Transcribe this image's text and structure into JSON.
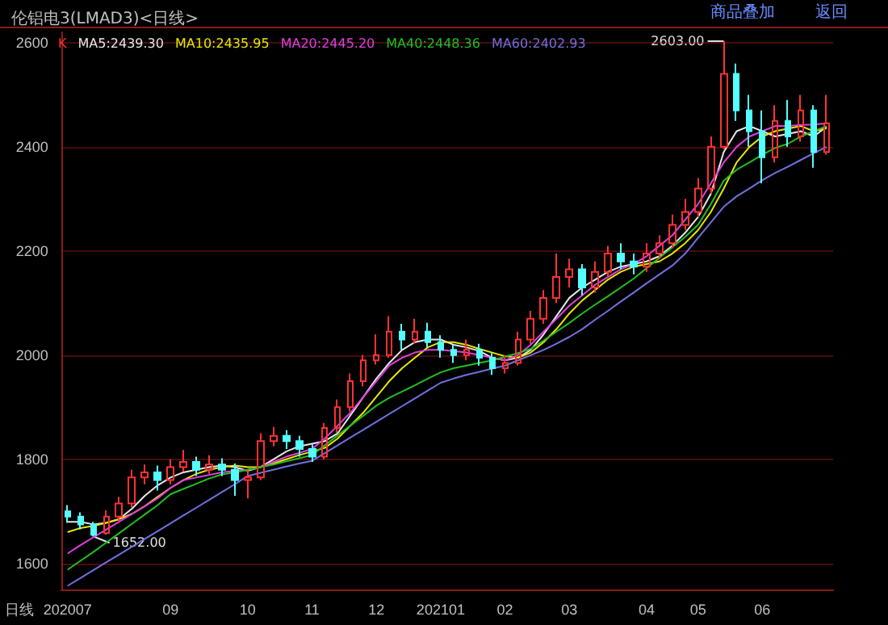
{
  "chart_data": {
    "type": "candlestick",
    "title": "伦铝电3(LMAD3)<日线>",
    "xlabel": "日线",
    "categories": [
      "202007",
      null,
      null,
      null,
      null,
      null,
      null,
      null,
      "09",
      null,
      null,
      null,
      null,
      null,
      "10",
      null,
      null,
      null,
      null,
      "11",
      null,
      null,
      null,
      null,
      "12",
      null,
      null,
      null,
      null,
      "202101",
      null,
      null,
      null,
      null,
      "02",
      null,
      null,
      null,
      null,
      "03",
      null,
      null,
      null,
      null,
      null,
      "04",
      null,
      null,
      null,
      "05",
      null,
      null,
      null,
      null,
      "06",
      null,
      null,
      null,
      null,
      null
    ],
    "series": [
      {
        "name": "K",
        "type": "candlestick",
        "value_labels": [
          null,
          null,
          "1652.00",
          null,
          null,
          null,
          null,
          null,
          null,
          null,
          null,
          null,
          null,
          null,
          null,
          null,
          null,
          null,
          null,
          null,
          null,
          null,
          null,
          null,
          null,
          null,
          null,
          null,
          null,
          null,
          null,
          null,
          null,
          null,
          null,
          null,
          null,
          null,
          null,
          null,
          null,
          null,
          null,
          null,
          null,
          null,
          null,
          null,
          null,
          null,
          null,
          "2603.00",
          null,
          null,
          null,
          null,
          null,
          null,
          null,
          null
        ],
        "colors": [
          "#54ffff",
          "#54ffff",
          "#54ffff",
          "#ff3232",
          "#ff3232",
          "#ff3232",
          "#ff3232",
          "#54ffff",
          "#ff3232",
          "#ff3232",
          "#54ffff",
          "#ff3232",
          "#54ffff",
          "#54ffff",
          "#ff3232",
          "#ff3232",
          "#ff3232",
          "#54ffff",
          "#54ffff",
          "#54ffff",
          "#ff3232",
          "#ff3232",
          "#ff3232",
          "#ff3232",
          "#ff3232",
          "#ff3232",
          "#54ffff",
          "#ff3232",
          "#54ffff",
          "#54ffff",
          "#54ffff",
          "#ff3232",
          "#54ffff",
          "#54ffff",
          "#ff3232",
          "#ff3232",
          "#ff3232",
          "#ff3232",
          "#ff3232",
          "#ff3232",
          "#54ffff",
          "#ff3232",
          "#ff3232",
          "#54ffff",
          "#54ffff",
          "#ff3232",
          "#ff3232",
          "#ff3232",
          "#ff3232",
          "#ff3232",
          "#ff3232",
          "#ff3232",
          "#54ffff",
          "#54ffff",
          "#54ffff",
          "#ff3232",
          "#54ffff",
          "#ff3232",
          "#54ffff",
          "#ff3232"
        ],
        "ohlc": [
          [
            1700,
            1712,
            1678,
            1690
          ],
          [
            1690,
            1698,
            1665,
            1675
          ],
          [
            1675,
            1680,
            1652,
            1655
          ],
          [
            1658,
            1702,
            1655,
            1690
          ],
          [
            1690,
            1728,
            1682,
            1715
          ],
          [
            1715,
            1780,
            1708,
            1765
          ],
          [
            1765,
            1790,
            1752,
            1775
          ],
          [
            1775,
            1788,
            1740,
            1760
          ],
          [
            1760,
            1800,
            1752,
            1785
          ],
          [
            1785,
            1818,
            1776,
            1795
          ],
          [
            1795,
            1805,
            1768,
            1780
          ],
          [
            1780,
            1808,
            1772,
            1790
          ],
          [
            1790,
            1802,
            1768,
            1780
          ],
          [
            1780,
            1792,
            1730,
            1760
          ],
          [
            1760,
            1780,
            1725,
            1765
          ],
          [
            1765,
            1850,
            1760,
            1835
          ],
          [
            1835,
            1862,
            1825,
            1845
          ],
          [
            1845,
            1856,
            1820,
            1835
          ],
          [
            1835,
            1845,
            1805,
            1820
          ],
          [
            1820,
            1830,
            1795,
            1805
          ],
          [
            1805,
            1870,
            1800,
            1860
          ],
          [
            1860,
            1915,
            1850,
            1900
          ],
          [
            1900,
            1965,
            1892,
            1950
          ],
          [
            1950,
            2000,
            1940,
            1990
          ],
          [
            1990,
            2040,
            1982,
            2000
          ],
          [
            2000,
            2075,
            1995,
            2045
          ],
          [
            2045,
            2060,
            2010,
            2030
          ],
          [
            2030,
            2070,
            2022,
            2045
          ],
          [
            2045,
            2062,
            2015,
            2025
          ],
          [
            2025,
            2038,
            1995,
            2010
          ],
          [
            2010,
            2020,
            1985,
            2000
          ],
          [
            2000,
            2030,
            1990,
            2010
          ],
          [
            2010,
            2022,
            1980,
            1995
          ],
          [
            1995,
            2005,
            1962,
            1975
          ],
          [
            1975,
            2000,
            1965,
            1985
          ],
          [
            1985,
            2045,
            1980,
            2030
          ],
          [
            2030,
            2085,
            2022,
            2070
          ],
          [
            2070,
            2125,
            2060,
            2110
          ],
          [
            2110,
            2195,
            2100,
            2150
          ],
          [
            2150,
            2185,
            2130,
            2165
          ],
          [
            2165,
            2175,
            2115,
            2130
          ],
          [
            2130,
            2180,
            2120,
            2160
          ],
          [
            2160,
            2210,
            2150,
            2195
          ],
          [
            2195,
            2215,
            2165,
            2180
          ],
          [
            2180,
            2195,
            2155,
            2170
          ],
          [
            2170,
            2215,
            2160,
            2195
          ],
          [
            2195,
            2230,
            2185,
            2215
          ],
          [
            2215,
            2270,
            2205,
            2250
          ],
          [
            2250,
            2300,
            2240,
            2275
          ],
          [
            2275,
            2340,
            2265,
            2320
          ],
          [
            2320,
            2420,
            2310,
            2400
          ],
          [
            2400,
            2603,
            2395,
            2540
          ],
          [
            2540,
            2560,
            2450,
            2470
          ],
          [
            2470,
            2500,
            2400,
            2430
          ],
          [
            2430,
            2470,
            2330,
            2380
          ],
          [
            2380,
            2480,
            2370,
            2450
          ],
          [
            2450,
            2490,
            2400,
            2420
          ],
          [
            2420,
            2500,
            2410,
            2470
          ],
          [
            2470,
            2480,
            2360,
            2390
          ],
          [
            2390,
            2500,
            2385,
            2445
          ]
        ]
      },
      {
        "name": "MA5:2439.30",
        "type": "line",
        "color": "#e8e8e8",
        "values": [
          1680,
          1680,
          1675,
          1678,
          1685,
          1705,
          1730,
          1750,
          1765,
          1775,
          1780,
          1785,
          1788,
          1785,
          1778,
          1785,
          1800,
          1815,
          1825,
          1830,
          1835,
          1850,
          1885,
          1920,
          1955,
          1985,
          2010,
          2025,
          2030,
          2030,
          2020,
          2015,
          2008,
          1995,
          1990,
          1995,
          2010,
          2040,
          2075,
          2110,
          2130,
          2145,
          2160,
          2170,
          2175,
          2180,
          2190,
          2210,
          2235,
          2265,
          2310,
          2390,
          2430,
          2440,
          2430,
          2420,
          2425,
          2430,
          2420,
          2439
        ]
      },
      {
        "name": "MA10:2435.95",
        "type": "line",
        "color": "#e8e800",
        "values": [
          1660,
          1668,
          1672,
          1678,
          1685,
          1695,
          1710,
          1728,
          1745,
          1760,
          1772,
          1780,
          1785,
          1788,
          1785,
          1785,
          1792,
          1800,
          1808,
          1815,
          1822,
          1840,
          1865,
          1890,
          1920,
          1950,
          1975,
          1995,
          2015,
          2025,
          2025,
          2020,
          2012,
          2005,
          1998,
          1995,
          2005,
          2025,
          2050,
          2080,
          2105,
          2125,
          2145,
          2160,
          2170,
          2175,
          2180,
          2195,
          2215,
          2240,
          2275,
          2320,
          2370,
          2400,
          2420,
          2430,
          2435,
          2440,
          2430,
          2436
        ]
      },
      {
        "name": "MA20:2445.20",
        "type": "line",
        "color": "#e040e0",
        "values": [
          1619,
          1635,
          1650,
          1665,
          1680,
          1695,
          1710,
          1725,
          1745,
          1760,
          1765,
          1770,
          1775,
          1778,
          1780,
          1785,
          1795,
          1805,
          1812,
          1820,
          1840,
          1865,
          1890,
          1920,
          1950,
          1980,
          1995,
          2005,
          2010,
          2010,
          2008,
          2005,
          2000,
          1995,
          1990,
          2000,
          2020,
          2045,
          2070,
          2095,
          2115,
          2135,
          2150,
          2165,
          2175,
          2190,
          2210,
          2230,
          2260,
          2290,
          2330,
          2370,
          2400,
          2420,
          2430,
          2440,
          2440,
          2442,
          2443,
          2445
        ]
      },
      {
        "name": "MA40:2448.36",
        "type": "line",
        "color": "#20c020",
        "values": [
          1588,
          1605,
          1622,
          1640,
          1658,
          1676,
          1694,
          1712,
          1733,
          1743,
          1753,
          1763,
          1771,
          1775,
          1780,
          1785,
          1790,
          1796,
          1802,
          1808,
          1827,
          1846,
          1865,
          1884,
          1903,
          1918,
          1930,
          1942,
          1955,
          1967,
          1975,
          1980,
          1985,
          1990,
          1997,
          2004,
          2012,
          2028,
          2045,
          2062,
          2080,
          2097,
          2113,
          2130,
          2147,
          2167,
          2187,
          2207,
          2227,
          2250,
          2290,
          2335,
          2356,
          2370,
          2385,
          2398,
          2406,
          2420,
          2430,
          2440
        ]
      },
      {
        "name": "MA60:2402.93",
        "type": "line",
        "color": "#7070e0",
        "values": [
          1557,
          1572,
          1587,
          1602,
          1617,
          1632,
          1647,
          1662,
          1677,
          1692,
          1707,
          1722,
          1737,
          1752,
          1768,
          1774,
          1780,
          1786,
          1792,
          1797,
          1812,
          1827,
          1842,
          1857,
          1872,
          1887,
          1902,
          1917,
          1932,
          1947,
          1955,
          1962,
          1968,
          1974,
          1980,
          1990,
          2000,
          2010,
          2022,
          2035,
          2050,
          2068,
          2085,
          2103,
          2120,
          2138,
          2155,
          2172,
          2195,
          2225,
          2255,
          2285,
          2305,
          2320,
          2336,
          2350,
          2362,
          2375,
          2388,
          2400
        ]
      }
    ],
    "ylim": [
      1550,
      2620
    ],
    "yticks": [
      1600,
      1800,
      2000,
      2200,
      2400,
      2600
    ],
    "grid": "y",
    "legend": "top left",
    "annotations": [
      "商品叠加",
      "返回"
    ]
  }
}
